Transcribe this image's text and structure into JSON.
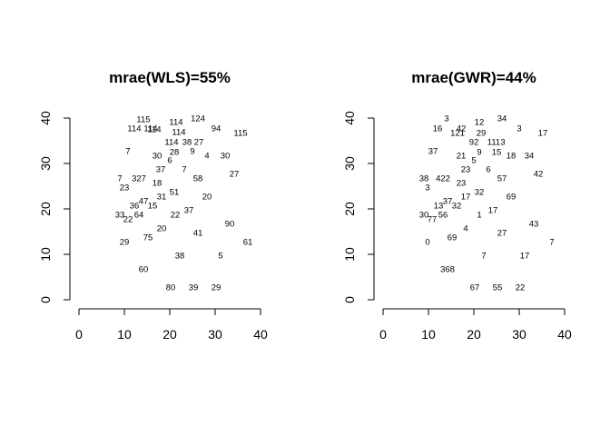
{
  "chart_data": [
    {
      "type": "scatter",
      "title": "mrae(WLS)=55%",
      "xlabel": "",
      "ylabel": "",
      "xlim": [
        0,
        40
      ],
      "ylim": [
        0,
        40
      ],
      "xticks": [
        "0",
        "10",
        "20",
        "30",
        "40"
      ],
      "yticks": [
        "0",
        "10",
        "20",
        "30",
        "40"
      ],
      "grid": false,
      "points": [
        {
          "x": 14.2,
          "y": 39.8,
          "label": "115"
        },
        {
          "x": 21.4,
          "y": 39.2,
          "label": "114"
        },
        {
          "x": 26.2,
          "y": 40.0,
          "label": "124"
        },
        {
          "x": 12.2,
          "y": 37.8,
          "label": "114"
        },
        {
          "x": 15.8,
          "y": 37.8,
          "label": "114"
        },
        {
          "x": 16.6,
          "y": 37.6,
          "label": "114"
        },
        {
          "x": 22.0,
          "y": 37.0,
          "label": "114"
        },
        {
          "x": 30.2,
          "y": 37.8,
          "label": "94"
        },
        {
          "x": 35.6,
          "y": 36.8,
          "label": "115"
        },
        {
          "x": 20.4,
          "y": 34.8,
          "label": "114"
        },
        {
          "x": 23.8,
          "y": 34.8,
          "label": "38"
        },
        {
          "x": 26.4,
          "y": 34.8,
          "label": "27"
        },
        {
          "x": 10.8,
          "y": 32.8,
          "label": "7"
        },
        {
          "x": 21.0,
          "y": 32.6,
          "label": "28"
        },
        {
          "x": 25.0,
          "y": 32.8,
          "label": "9"
        },
        {
          "x": 17.2,
          "y": 31.8,
          "label": "30"
        },
        {
          "x": 28.2,
          "y": 31.8,
          "label": "4"
        },
        {
          "x": 32.2,
          "y": 31.8,
          "label": "30"
        },
        {
          "x": 20.0,
          "y": 30.8,
          "label": "6"
        },
        {
          "x": 18.0,
          "y": 28.8,
          "label": "37"
        },
        {
          "x": 23.2,
          "y": 28.8,
          "label": "7"
        },
        {
          "x": 34.2,
          "y": 27.8,
          "label": "27"
        },
        {
          "x": 9.0,
          "y": 26.8,
          "label": "7"
        },
        {
          "x": 13.2,
          "y": 26.8,
          "label": "327"
        },
        {
          "x": 26.2,
          "y": 26.8,
          "label": "58"
        },
        {
          "x": 17.2,
          "y": 25.8,
          "label": "18"
        },
        {
          "x": 10.0,
          "y": 24.8,
          "label": "23"
        },
        {
          "x": 21.0,
          "y": 23.8,
          "label": "51"
        },
        {
          "x": 18.2,
          "y": 22.8,
          "label": "31"
        },
        {
          "x": 28.2,
          "y": 22.8,
          "label": "20"
        },
        {
          "x": 14.2,
          "y": 21.8,
          "label": "47"
        },
        {
          "x": 12.2,
          "y": 20.8,
          "label": "36"
        },
        {
          "x": 16.2,
          "y": 20.8,
          "label": "15"
        },
        {
          "x": 24.2,
          "y": 19.8,
          "label": "37"
        },
        {
          "x": 13.2,
          "y": 18.8,
          "label": "64"
        },
        {
          "x": 21.2,
          "y": 18.8,
          "label": "22"
        },
        {
          "x": 9.0,
          "y": 18.8,
          "label": "33"
        },
        {
          "x": 10.8,
          "y": 17.8,
          "label": "22"
        },
        {
          "x": 33.2,
          "y": 16.8,
          "label": "90"
        },
        {
          "x": 18.2,
          "y": 15.8,
          "label": "20"
        },
        {
          "x": 26.2,
          "y": 14.8,
          "label": "41"
        },
        {
          "x": 15.2,
          "y": 13.8,
          "label": "75"
        },
        {
          "x": 10.0,
          "y": 12.8,
          "label": "29"
        },
        {
          "x": 37.2,
          "y": 12.8,
          "label": "61"
        },
        {
          "x": 22.2,
          "y": 9.8,
          "label": "38"
        },
        {
          "x": 31.2,
          "y": 9.8,
          "label": "5"
        },
        {
          "x": 14.2,
          "y": 6.8,
          "label": "60"
        },
        {
          "x": 20.2,
          "y": 2.8,
          "label": "80"
        },
        {
          "x": 25.2,
          "y": 2.8,
          "label": "39"
        },
        {
          "x": 30.2,
          "y": 2.8,
          "label": "29"
        }
      ]
    },
    {
      "type": "scatter",
      "title": "mrae(GWR)=44%",
      "xlabel": "",
      "ylabel": "",
      "xlim": [
        0,
        40
      ],
      "ylim": [
        0,
        40
      ],
      "xticks": [
        "0",
        "10",
        "20",
        "30",
        "40"
      ],
      "yticks": [
        "0",
        "10",
        "20",
        "30",
        "40"
      ],
      "grid": false,
      "points": [
        {
          "x": 14.0,
          "y": 40.0,
          "label": "3"
        },
        {
          "x": 21.2,
          "y": 39.2,
          "label": "12"
        },
        {
          "x": 26.2,
          "y": 40.0,
          "label": "34"
        },
        {
          "x": 12.0,
          "y": 37.8,
          "label": "16"
        },
        {
          "x": 17.2,
          "y": 37.8,
          "label": "42"
        },
        {
          "x": 16.4,
          "y": 36.8,
          "label": "121"
        },
        {
          "x": 21.6,
          "y": 36.8,
          "label": "29"
        },
        {
          "x": 30.0,
          "y": 37.8,
          "label": "3"
        },
        {
          "x": 35.2,
          "y": 36.8,
          "label": "17"
        },
        {
          "x": 20.0,
          "y": 34.8,
          "label": "92"
        },
        {
          "x": 24.4,
          "y": 34.8,
          "label": "111"
        },
        {
          "x": 26.4,
          "y": 34.8,
          "label": "3"
        },
        {
          "x": 11.0,
          "y": 32.8,
          "label": "37"
        },
        {
          "x": 21.2,
          "y": 32.6,
          "label": "9"
        },
        {
          "x": 25.0,
          "y": 32.6,
          "label": "15"
        },
        {
          "x": 17.2,
          "y": 31.8,
          "label": "21"
        },
        {
          "x": 28.2,
          "y": 31.8,
          "label": "18"
        },
        {
          "x": 32.2,
          "y": 31.8,
          "label": "34"
        },
        {
          "x": 20.0,
          "y": 30.8,
          "label": "5"
        },
        {
          "x": 18.2,
          "y": 28.8,
          "label": "23"
        },
        {
          "x": 23.2,
          "y": 28.8,
          "label": "6"
        },
        {
          "x": 34.2,
          "y": 27.8,
          "label": "42"
        },
        {
          "x": 9.0,
          "y": 26.8,
          "label": "38"
        },
        {
          "x": 13.2,
          "y": 26.8,
          "label": "422"
        },
        {
          "x": 26.2,
          "y": 26.8,
          "label": "57"
        },
        {
          "x": 17.2,
          "y": 25.8,
          "label": "23"
        },
        {
          "x": 9.8,
          "y": 24.8,
          "label": "3"
        },
        {
          "x": 21.2,
          "y": 23.8,
          "label": "32"
        },
        {
          "x": 18.2,
          "y": 22.8,
          "label": "17"
        },
        {
          "x": 28.2,
          "y": 22.8,
          "label": "69"
        },
        {
          "x": 14.2,
          "y": 21.8,
          "label": "37"
        },
        {
          "x": 12.2,
          "y": 20.8,
          "label": "13"
        },
        {
          "x": 16.2,
          "y": 20.8,
          "label": "32"
        },
        {
          "x": 24.2,
          "y": 19.8,
          "label": "17"
        },
        {
          "x": 13.2,
          "y": 18.8,
          "label": "56"
        },
        {
          "x": 21.2,
          "y": 18.8,
          "label": "1"
        },
        {
          "x": 9.0,
          "y": 18.8,
          "label": "30"
        },
        {
          "x": 10.8,
          "y": 17.8,
          "label": "77"
        },
        {
          "x": 33.2,
          "y": 16.8,
          "label": "43"
        },
        {
          "x": 18.2,
          "y": 15.8,
          "label": "4"
        },
        {
          "x": 26.2,
          "y": 14.8,
          "label": "27"
        },
        {
          "x": 15.2,
          "y": 13.8,
          "label": "69"
        },
        {
          "x": 9.8,
          "y": 12.8,
          "label": "0"
        },
        {
          "x": 37.2,
          "y": 12.8,
          "label": "7"
        },
        {
          "x": 22.2,
          "y": 9.8,
          "label": "7"
        },
        {
          "x": 31.2,
          "y": 9.8,
          "label": "17"
        },
        {
          "x": 14.2,
          "y": 6.8,
          "label": "368"
        },
        {
          "x": 20.2,
          "y": 2.8,
          "label": "67"
        },
        {
          "x": 25.2,
          "y": 2.8,
          "label": "55"
        },
        {
          "x": 30.2,
          "y": 2.8,
          "label": "22"
        }
      ]
    }
  ]
}
